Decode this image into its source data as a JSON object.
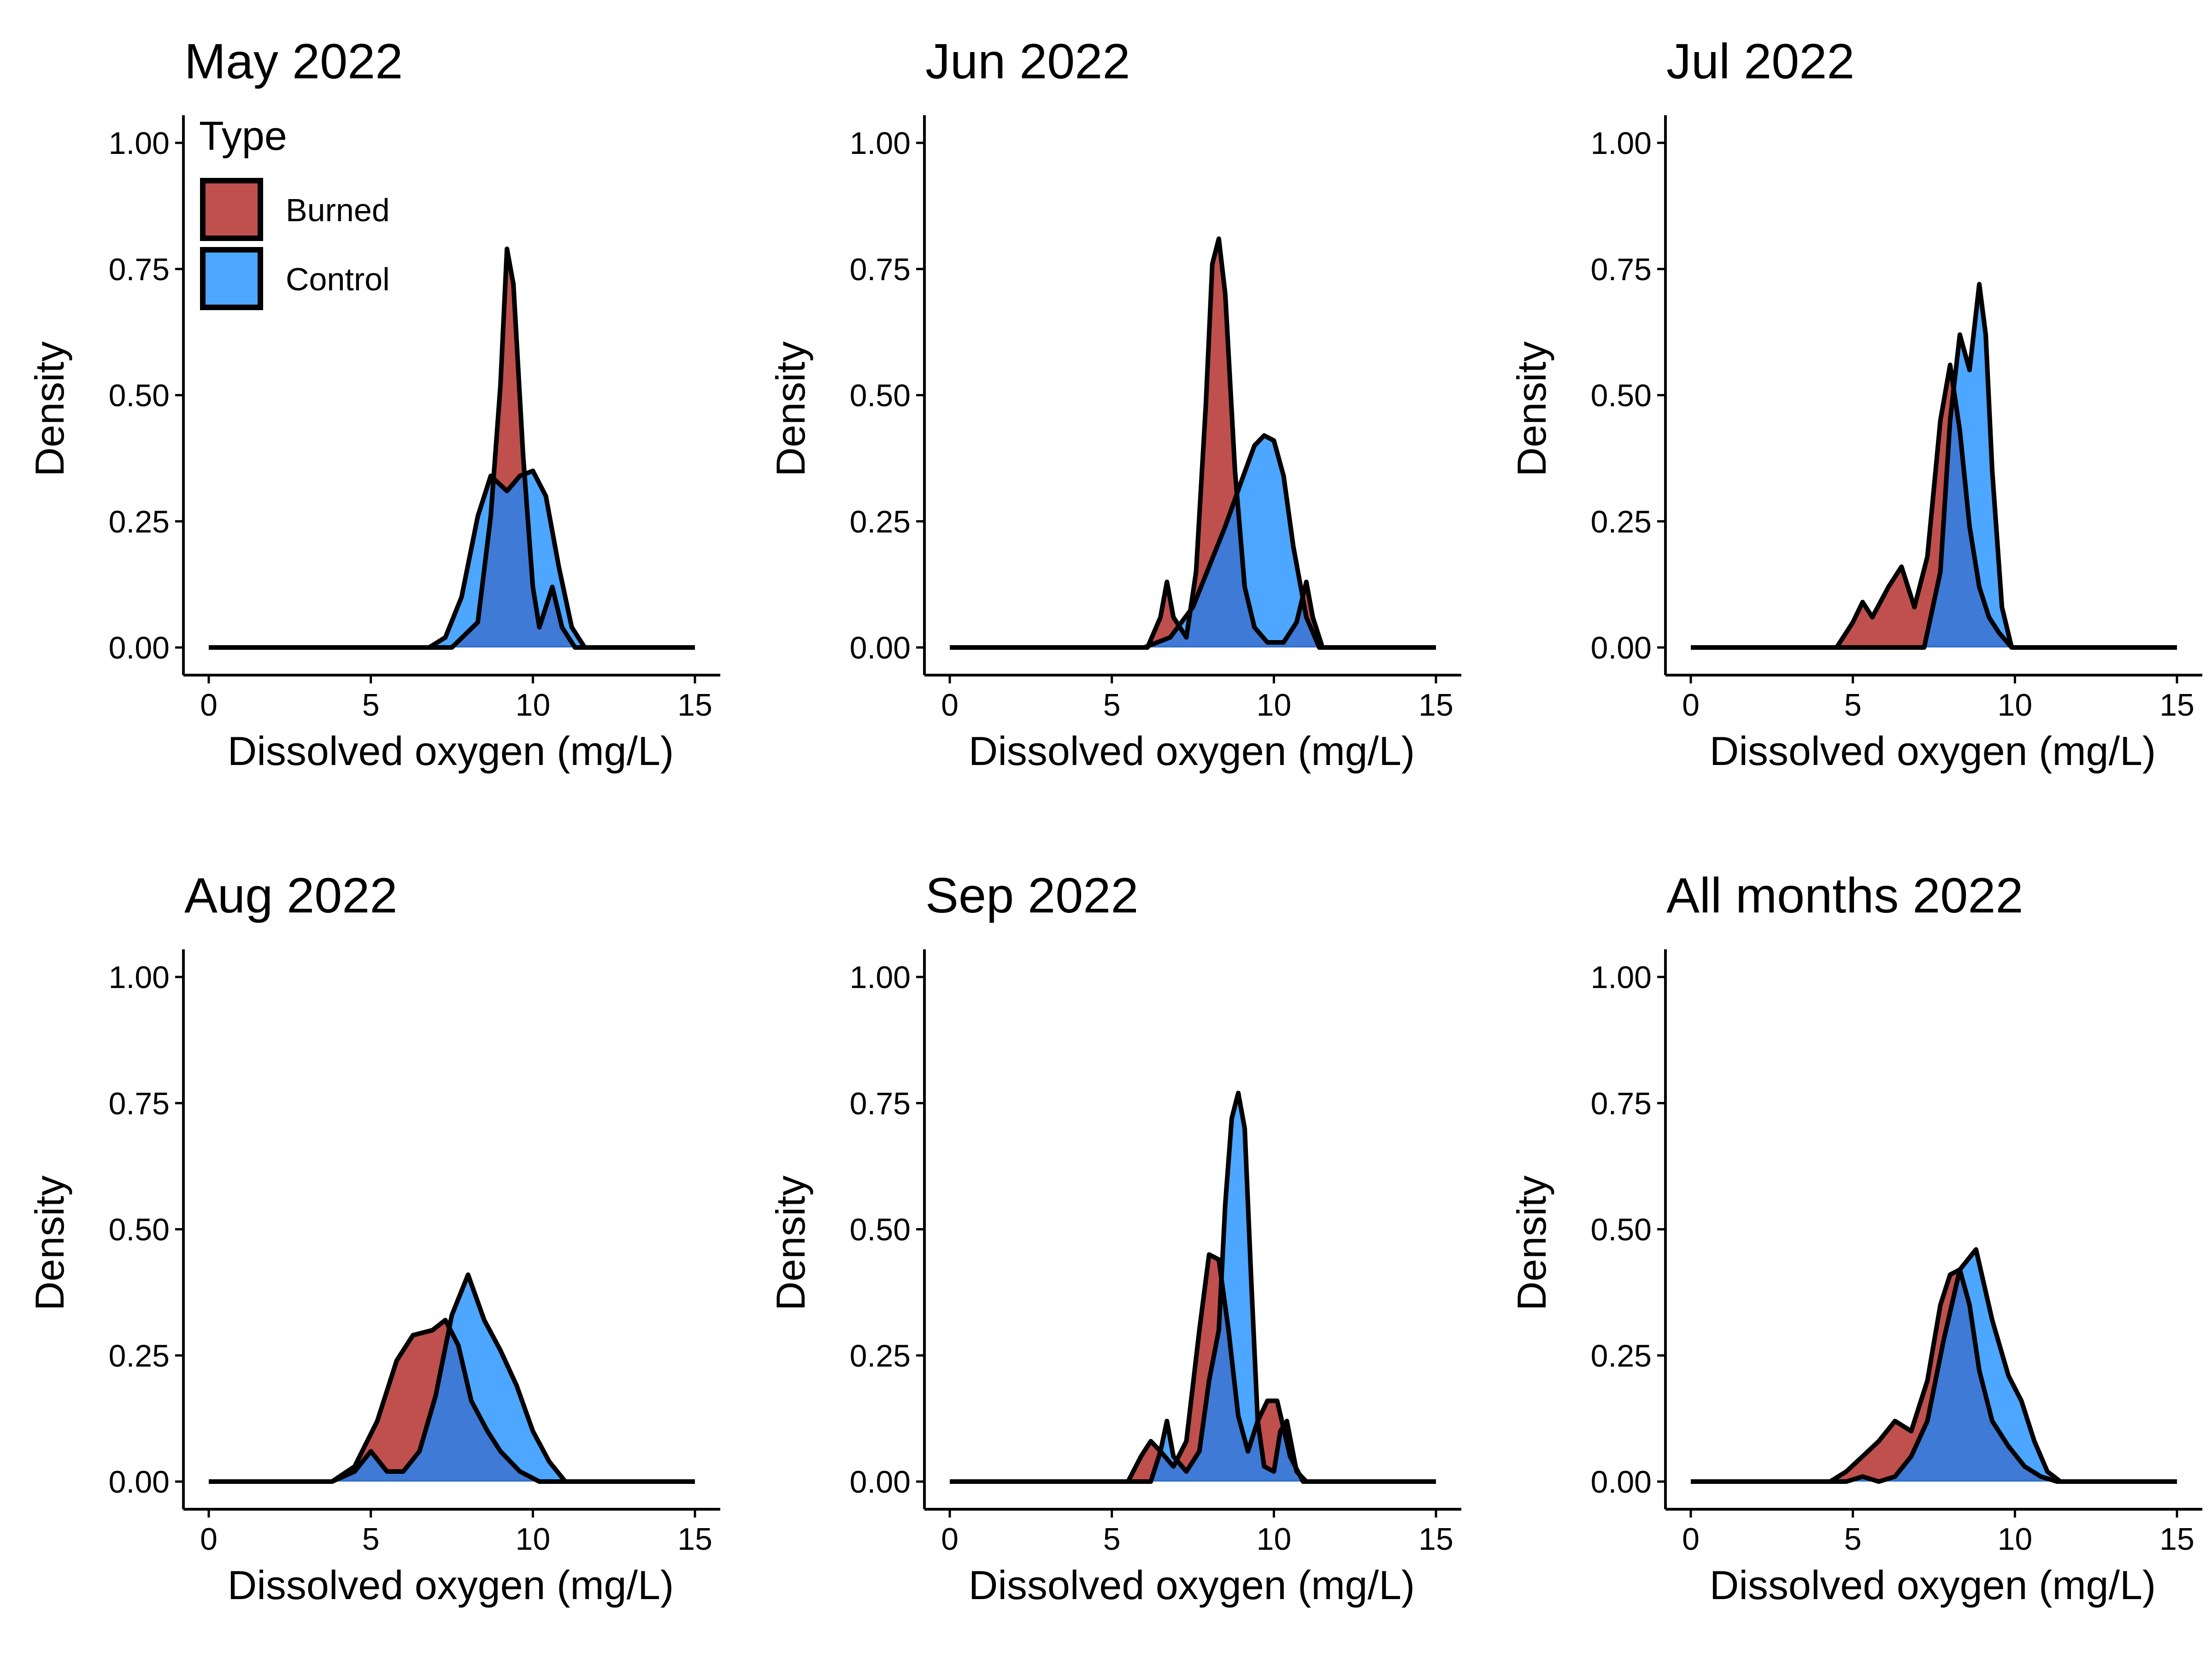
{
  "colors": {
    "burned": "#c0504d",
    "control": "#4da6ff",
    "overlap": "#3e7ad6",
    "outline": "#000000"
  },
  "legend": {
    "title": "Type",
    "items": [
      {
        "label": "Burned",
        "color": "#c0504d"
      },
      {
        "label": "Control",
        "color": "#4da6ff"
      }
    ]
  },
  "chart_data": [
    {
      "type": "area",
      "title": "May 2022",
      "xlabel": "Dissolved oxygen (mg/L)",
      "ylabel": "Density",
      "xlim": [
        0,
        15
      ],
      "ylim": [
        0,
        1
      ],
      "x_ticks": [
        "0",
        "5",
        "10",
        "15"
      ],
      "y_ticks": [
        "0.00",
        "0.25",
        "0.50",
        "0.75",
        "1.00"
      ],
      "series": [
        {
          "name": "Burned",
          "x": [
            0,
            7.5,
            8.3,
            8.7,
            9.0,
            9.2,
            9.4,
            9.7,
            10.0,
            10.2,
            10.4,
            10.6,
            10.9,
            11.3,
            15
          ],
          "y": [
            0,
            0,
            0.05,
            0.26,
            0.52,
            0.79,
            0.72,
            0.38,
            0.12,
            0.04,
            0.08,
            0.12,
            0.04,
            0,
            0
          ]
        },
        {
          "name": "Control",
          "x": [
            0,
            6.8,
            7.3,
            7.8,
            8.3,
            8.7,
            9.2,
            9.6,
            10.0,
            10.4,
            10.8,
            11.2,
            11.6,
            15
          ],
          "y": [
            0,
            0,
            0.02,
            0.1,
            0.26,
            0.34,
            0.31,
            0.34,
            0.35,
            0.3,
            0.16,
            0.04,
            0,
            0
          ]
        }
      ]
    },
    {
      "type": "area",
      "title": "Jun 2022",
      "xlabel": "Dissolved oxygen (mg/L)",
      "ylabel": "Density",
      "xlim": [
        0,
        15
      ],
      "ylim": [
        0,
        1
      ],
      "x_ticks": [
        "0",
        "5",
        "10",
        "15"
      ],
      "y_ticks": [
        "0.00",
        "0.25",
        "0.50",
        "0.75",
        "1.00"
      ],
      "series": [
        {
          "name": "Burned",
          "x": [
            0,
            6.1,
            6.5,
            6.7,
            6.9,
            7.3,
            7.6,
            7.9,
            8.1,
            8.3,
            8.5,
            8.8,
            9.1,
            9.4,
            9.8,
            10.3,
            10.7,
            11.0,
            11.2,
            11.5,
            15
          ],
          "y": [
            0,
            0,
            0.06,
            0.13,
            0.06,
            0.02,
            0.15,
            0.48,
            0.76,
            0.81,
            0.7,
            0.35,
            0.12,
            0.04,
            0.01,
            0.01,
            0.05,
            0.13,
            0.06,
            0,
            0
          ]
        },
        {
          "name": "Control",
          "x": [
            0,
            6.0,
            6.8,
            7.5,
            8.0,
            8.5,
            9.0,
            9.4,
            9.7,
            10.0,
            10.3,
            10.6,
            11.0,
            11.4,
            15
          ],
          "y": [
            0,
            0,
            0.02,
            0.08,
            0.16,
            0.24,
            0.33,
            0.4,
            0.42,
            0.41,
            0.34,
            0.2,
            0.06,
            0,
            0
          ]
        }
      ]
    },
    {
      "type": "area",
      "title": "Jul 2022",
      "xlabel": "Dissolved oxygen (mg/L)",
      "ylabel": "Density",
      "xlim": [
        0,
        15
      ],
      "ylim": [
        0,
        1
      ],
      "x_ticks": [
        "0",
        "5",
        "10",
        "15"
      ],
      "y_ticks": [
        "0.00",
        "0.25",
        "0.50",
        "0.75",
        "1.00"
      ],
      "series": [
        {
          "name": "Burned",
          "x": [
            0,
            4.5,
            5.0,
            5.3,
            5.6,
            6.1,
            6.5,
            6.9,
            7.3,
            7.7,
            8.0,
            8.3,
            8.6,
            8.9,
            9.2,
            9.5,
            9.9,
            15
          ],
          "y": [
            0,
            0,
            0.05,
            0.09,
            0.06,
            0.12,
            0.16,
            0.08,
            0.18,
            0.45,
            0.56,
            0.43,
            0.24,
            0.12,
            0.06,
            0.03,
            0,
            0
          ]
        },
        {
          "name": "Control",
          "x": [
            0,
            7.2,
            7.7,
            8.0,
            8.3,
            8.6,
            8.9,
            9.1,
            9.3,
            9.6,
            9.9,
            15
          ],
          "y": [
            0,
            0,
            0.15,
            0.45,
            0.62,
            0.55,
            0.72,
            0.62,
            0.35,
            0.08,
            0,
            0
          ]
        }
      ]
    },
    {
      "type": "area",
      "title": "Aug 2022",
      "xlabel": "Dissolved oxygen (mg/L)",
      "ylabel": "Density",
      "xlim": [
        0,
        15
      ],
      "ylim": [
        0,
        1
      ],
      "x_ticks": [
        "0",
        "5",
        "10",
        "15"
      ],
      "y_ticks": [
        "0.00",
        "0.25",
        "0.50",
        "0.75",
        "1.00"
      ],
      "series": [
        {
          "name": "Burned",
          "x": [
            0,
            3.8,
            4.5,
            5.2,
            5.8,
            6.3,
            6.9,
            7.3,
            7.7,
            8.1,
            8.6,
            9.0,
            9.6,
            10.2,
            15
          ],
          "y": [
            0,
            0,
            0.03,
            0.12,
            0.24,
            0.29,
            0.3,
            0.32,
            0.27,
            0.16,
            0.1,
            0.06,
            0.02,
            0,
            0
          ]
        },
        {
          "name": "Control",
          "x": [
            0,
            3.8,
            4.5,
            5.0,
            5.5,
            6.0,
            6.5,
            7.0,
            7.5,
            8.0,
            8.5,
            9.0,
            9.5,
            10.0,
            10.5,
            11.0,
            15
          ],
          "y": [
            0,
            0,
            0.02,
            0.06,
            0.02,
            0.02,
            0.06,
            0.17,
            0.33,
            0.41,
            0.32,
            0.26,
            0.19,
            0.1,
            0.04,
            0,
            0
          ]
        }
      ]
    },
    {
      "type": "area",
      "title": "Sep 2022",
      "xlabel": "Dissolved oxygen (mg/L)",
      "ylabel": "Density",
      "xlim": [
        0,
        15
      ],
      "ylim": [
        0,
        1
      ],
      "x_ticks": [
        "0",
        "5",
        "10",
        "15"
      ],
      "y_ticks": [
        "0.00",
        "0.25",
        "0.50",
        "0.75",
        "1.00"
      ],
      "series": [
        {
          "name": "Burned",
          "x": [
            0,
            5.5,
            5.9,
            6.2,
            6.5,
            6.9,
            7.3,
            7.7,
            8.0,
            8.3,
            8.6,
            8.9,
            9.2,
            9.5,
            9.8,
            10.1,
            10.5,
            10.9,
            15
          ],
          "y": [
            0,
            0,
            0.05,
            0.08,
            0.06,
            0.03,
            0.08,
            0.3,
            0.45,
            0.44,
            0.3,
            0.13,
            0.06,
            0.12,
            0.16,
            0.16,
            0.05,
            0,
            0
          ]
        },
        {
          "name": "Control",
          "x": [
            0,
            6.2,
            6.5,
            6.7,
            6.9,
            7.3,
            7.7,
            8.0,
            8.3,
            8.5,
            8.7,
            8.9,
            9.1,
            9.3,
            9.5,
            9.7,
            10.0,
            10.2,
            10.4,
            10.7,
            11.0,
            15
          ],
          "y": [
            0,
            0,
            0.06,
            0.12,
            0.05,
            0.02,
            0.06,
            0.2,
            0.3,
            0.55,
            0.72,
            0.77,
            0.7,
            0.4,
            0.12,
            0.03,
            0.02,
            0.1,
            0.12,
            0.02,
            0,
            0
          ]
        }
      ]
    },
    {
      "type": "area",
      "title": "All months 2022",
      "xlabel": "Dissolved oxygen (mg/L)",
      "ylabel": "Density",
      "xlim": [
        0,
        15
      ],
      "ylim": [
        0,
        1
      ],
      "x_ticks": [
        "0",
        "5",
        "10",
        "15"
      ],
      "y_ticks": [
        "0.00",
        "0.25",
        "0.50",
        "0.75",
        "1.00"
      ],
      "series": [
        {
          "name": "Burned",
          "x": [
            0,
            4.3,
            4.8,
            5.3,
            5.8,
            6.3,
            6.8,
            7.3,
            7.7,
            8.0,
            8.3,
            8.6,
            8.9,
            9.3,
            9.8,
            10.3,
            10.8,
            11.3,
            15
          ],
          "y": [
            0,
            0,
            0.02,
            0.05,
            0.08,
            0.12,
            0.1,
            0.2,
            0.35,
            0.41,
            0.42,
            0.35,
            0.22,
            0.12,
            0.07,
            0.03,
            0.01,
            0,
            0
          ]
        },
        {
          "name": "Control",
          "x": [
            0,
            4.8,
            5.3,
            5.8,
            6.3,
            6.8,
            7.3,
            7.8,
            8.3,
            8.8,
            9.3,
            9.8,
            10.2,
            10.6,
            11.0,
            11.4,
            15
          ],
          "y": [
            0,
            0,
            0.01,
            0.0,
            0.01,
            0.05,
            0.12,
            0.28,
            0.42,
            0.46,
            0.32,
            0.21,
            0.16,
            0.08,
            0.02,
            0,
            0
          ]
        }
      ]
    }
  ]
}
